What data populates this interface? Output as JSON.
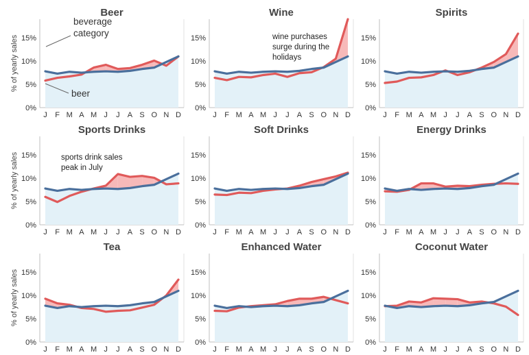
{
  "figure": {
    "ylabel": "% of yearly sales",
    "month_ticks": [
      "J",
      "F",
      "M",
      "A",
      "M",
      "J",
      "J",
      "A",
      "S",
      "O",
      "N",
      "D"
    ],
    "y_ticks": [
      "0%",
      "5%",
      "10%",
      "15%"
    ],
    "colors": {
      "category_line": "#e05a5a",
      "category_fill": "#f7b9b9",
      "beer_line": "#4a6f9c",
      "beer_fill": "#e3f1f8"
    }
  },
  "chart_data": [
    {
      "type": "line",
      "title": "Beer",
      "ylim": [
        0,
        19
      ],
      "categories": [
        "J",
        "F",
        "M",
        "A",
        "M",
        "J",
        "J",
        "A",
        "S",
        "O",
        "N",
        "D"
      ],
      "series": [
        {
          "name": "beverage category",
          "values": [
            5.8,
            6.4,
            6.7,
            7.1,
            8.6,
            9.2,
            8.3,
            8.5,
            9.2,
            10.1,
            9.0,
            11.0
          ]
        },
        {
          "name": "beer",
          "values": [
            7.8,
            7.3,
            7.7,
            7.5,
            7.7,
            7.8,
            7.7,
            7.9,
            8.3,
            8.6,
            9.8,
            11.0
          ]
        }
      ],
      "annotations": [
        "beverage\ncategory",
        "beer"
      ]
    },
    {
      "type": "line",
      "title": "Wine",
      "ylim": [
        0,
        19
      ],
      "categories": [
        "J",
        "F",
        "M",
        "A",
        "M",
        "J",
        "J",
        "A",
        "S",
        "O",
        "N",
        "D"
      ],
      "series": [
        {
          "values": [
            6.4,
            5.9,
            6.6,
            6.5,
            7.0,
            7.3,
            6.6,
            7.4,
            7.6,
            8.7,
            10.5,
            19.0
          ]
        },
        {
          "values": [
            7.8,
            7.3,
            7.7,
            7.5,
            7.7,
            7.8,
            7.7,
            7.9,
            8.3,
            8.6,
            9.8,
            11.0
          ]
        }
      ],
      "annotations": [
        "wine purchases\nsurge during the\nholidays"
      ]
    },
    {
      "type": "line",
      "title": "Spirits",
      "ylim": [
        0,
        19
      ],
      "categories": [
        "J",
        "F",
        "M",
        "A",
        "M",
        "J",
        "J",
        "A",
        "S",
        "O",
        "N",
        "D"
      ],
      "series": [
        {
          "values": [
            5.3,
            5.6,
            6.4,
            6.5,
            7.0,
            8.0,
            7.0,
            7.6,
            8.6,
            9.8,
            11.5,
            15.9
          ]
        },
        {
          "values": [
            7.8,
            7.3,
            7.7,
            7.5,
            7.7,
            7.8,
            7.7,
            7.9,
            8.3,
            8.6,
            9.8,
            11.0
          ]
        }
      ],
      "annotations": []
    },
    {
      "type": "line",
      "title": "Sports Drinks",
      "ylim": [
        0,
        19
      ],
      "categories": [
        "J",
        "F",
        "M",
        "A",
        "M",
        "J",
        "J",
        "A",
        "S",
        "O",
        "N",
        "D"
      ],
      "series": [
        {
          "values": [
            6.0,
            4.9,
            6.2,
            7.1,
            7.8,
            8.4,
            10.9,
            10.3,
            10.5,
            10.1,
            8.7,
            8.9
          ]
        },
        {
          "values": [
            7.8,
            7.3,
            7.7,
            7.5,
            7.7,
            7.8,
            7.7,
            7.9,
            8.3,
            8.6,
            9.8,
            11.0
          ]
        }
      ],
      "annotations": [
        "sports drink sales\npeak in July"
      ]
    },
    {
      "type": "line",
      "title": "Soft Drinks",
      "ylim": [
        0,
        19
      ],
      "categories": [
        "J",
        "F",
        "M",
        "A",
        "M",
        "J",
        "J",
        "A",
        "S",
        "O",
        "N",
        "D"
      ],
      "series": [
        {
          "values": [
            6.5,
            6.4,
            6.9,
            6.8,
            7.3,
            7.6,
            7.8,
            8.4,
            9.2,
            9.8,
            10.4,
            11.2
          ]
        },
        {
          "values": [
            7.8,
            7.3,
            7.7,
            7.5,
            7.7,
            7.8,
            7.7,
            7.9,
            8.3,
            8.6,
            9.8,
            11.0
          ]
        }
      ],
      "annotations": []
    },
    {
      "type": "line",
      "title": "Energy Drinks",
      "ylim": [
        0,
        19
      ],
      "categories": [
        "J",
        "F",
        "M",
        "A",
        "M",
        "J",
        "J",
        "A",
        "S",
        "O",
        "N",
        "D"
      ],
      "series": [
        {
          "values": [
            7.2,
            7.1,
            7.5,
            8.9,
            8.9,
            8.2,
            8.4,
            8.3,
            8.6,
            8.8,
            8.9,
            8.8
          ]
        },
        {
          "values": [
            7.8,
            7.3,
            7.7,
            7.5,
            7.7,
            7.8,
            7.7,
            7.9,
            8.3,
            8.6,
            9.8,
            11.0
          ]
        }
      ],
      "annotations": []
    },
    {
      "type": "line",
      "title": "Tea",
      "ylim": [
        0,
        19
      ],
      "categories": [
        "J",
        "F",
        "M",
        "A",
        "M",
        "J",
        "J",
        "A",
        "S",
        "O",
        "N",
        "D"
      ],
      "series": [
        {
          "values": [
            9.3,
            8.3,
            8.0,
            7.3,
            7.1,
            6.5,
            6.7,
            6.8,
            7.4,
            8.0,
            10.0,
            13.4
          ]
        },
        {
          "values": [
            7.8,
            7.3,
            7.7,
            7.5,
            7.7,
            7.8,
            7.7,
            7.9,
            8.3,
            8.6,
            9.8,
            11.0
          ]
        }
      ],
      "annotations": []
    },
    {
      "type": "line",
      "title": "Enhanced Water",
      "ylim": [
        0,
        19
      ],
      "categories": [
        "J",
        "F",
        "M",
        "A",
        "M",
        "J",
        "J",
        "A",
        "S",
        "O",
        "N",
        "D"
      ],
      "series": [
        {
          "values": [
            6.7,
            6.6,
            7.4,
            7.7,
            7.9,
            8.1,
            8.8,
            9.3,
            9.3,
            9.7,
            9.0,
            8.3
          ]
        },
        {
          "values": [
            7.8,
            7.3,
            7.7,
            7.5,
            7.7,
            7.8,
            7.7,
            7.9,
            8.3,
            8.6,
            9.8,
            11.0
          ]
        }
      ],
      "annotations": []
    },
    {
      "type": "line",
      "title": "Coconut Water",
      "ylim": [
        0,
        19
      ],
      "categories": [
        "J",
        "F",
        "M",
        "A",
        "M",
        "J",
        "J",
        "A",
        "S",
        "O",
        "N",
        "D"
      ],
      "series": [
        {
          "values": [
            7.7,
            7.8,
            8.7,
            8.5,
            9.4,
            9.3,
            9.2,
            8.5,
            8.7,
            8.3,
            7.6,
            5.8
          ]
        },
        {
          "values": [
            7.8,
            7.3,
            7.7,
            7.5,
            7.7,
            7.8,
            7.7,
            7.9,
            8.3,
            8.6,
            9.8,
            11.0
          ]
        }
      ],
      "annotations": []
    }
  ]
}
